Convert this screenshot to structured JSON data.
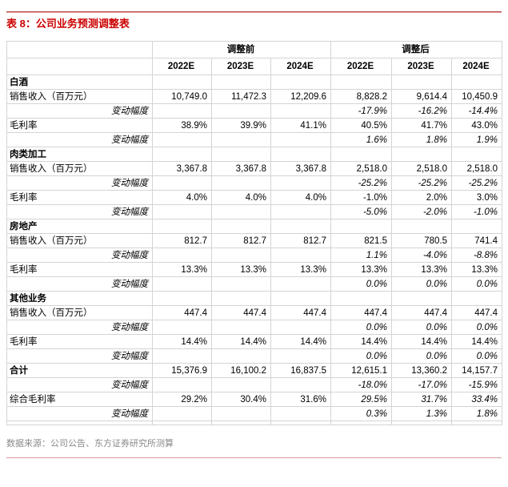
{
  "title": "表 8：公司业务预测调整表",
  "colors": {
    "title_red": "#cc0000",
    "top_rule_red": "#b94441",
    "bottom_rule_pink": "#dc9b9b",
    "footer_gray": "#8a8a8a",
    "grid_gray": "#d4d4d4",
    "section_divider_black": "#000000"
  },
  "table": {
    "group_headers": [
      "调整前",
      "调整后"
    ],
    "year_headers": [
      "2022E",
      "2023E",
      "2024E",
      "2022E",
      "2023E",
      "2024E"
    ],
    "rows": [
      {
        "label": "白酒",
        "style": "section",
        "values": [
          "",
          "",
          "",
          "",
          "",
          ""
        ]
      },
      {
        "label": "销售收入（百万元）",
        "style": "normal",
        "values": [
          "10,749.0",
          "11,472.3",
          "12,209.6",
          "8,828.2",
          "9,614.4",
          "10,450.9"
        ]
      },
      {
        "label": "变动幅度",
        "style": "change",
        "values": [
          "",
          "",
          "",
          "-17.9%",
          "-16.2%",
          "-14.4%"
        ]
      },
      {
        "label": "毛利率",
        "style": "normal",
        "values": [
          "38.9%",
          "39.9%",
          "41.1%",
          "40.5%",
          "41.7%",
          "43.0%"
        ]
      },
      {
        "label": "变动幅度",
        "style": "change",
        "values": [
          "",
          "",
          "",
          "1.6%",
          "1.8%",
          "1.9%"
        ]
      },
      {
        "label": "肉类加工",
        "style": "section",
        "values": [
          "",
          "",
          "",
          "",
          "",
          ""
        ]
      },
      {
        "label": "销售收入（百万元）",
        "style": "normal",
        "values": [
          "3,367.8",
          "3,367.8",
          "3,367.8",
          "2,518.0",
          "2,518.0",
          "2,518.0"
        ]
      },
      {
        "label": "变动幅度",
        "style": "change",
        "values": [
          "",
          "",
          "",
          "-25.2%",
          "-25.2%",
          "-25.2%"
        ]
      },
      {
        "label": "毛利率",
        "style": "normal",
        "values": [
          "4.0%",
          "4.0%",
          "4.0%",
          "-1.0%",
          "2.0%",
          "3.0%"
        ]
      },
      {
        "label": "变动幅度",
        "style": "change",
        "values": [
          "",
          "",
          "",
          "-5.0%",
          "-2.0%",
          "-1.0%"
        ]
      },
      {
        "label": "房地产",
        "style": "section",
        "values": [
          "",
          "",
          "",
          "",
          "",
          ""
        ]
      },
      {
        "label": "销售收入（百万元）",
        "style": "normal",
        "values": [
          "812.7",
          "812.7",
          "812.7",
          "821.5",
          "780.5",
          "741.4"
        ]
      },
      {
        "label": "变动幅度",
        "style": "change",
        "values": [
          "",
          "",
          "",
          "1.1%",
          "-4.0%",
          "-8.8%"
        ]
      },
      {
        "label": "毛利率",
        "style": "normal",
        "values": [
          "13.3%",
          "13.3%",
          "13.3%",
          "13.3%",
          "13.3%",
          "13.3%"
        ]
      },
      {
        "label": "变动幅度",
        "style": "change",
        "values": [
          "",
          "",
          "",
          "0.0%",
          "0.0%",
          "0.0%"
        ]
      },
      {
        "label": "其他业务",
        "style": "section",
        "values": [
          "",
          "",
          "",
          "",
          "",
          ""
        ]
      },
      {
        "label": "销售收入（百万元）",
        "style": "normal",
        "values": [
          "447.4",
          "447.4",
          "447.4",
          "447.4",
          "447.4",
          "447.4"
        ]
      },
      {
        "label": "变动幅度",
        "style": "change",
        "values": [
          "",
          "",
          "",
          "0.0%",
          "0.0%",
          "0.0%"
        ]
      },
      {
        "label": "毛利率",
        "style": "normal",
        "values": [
          "14.4%",
          "14.4%",
          "14.4%",
          "14.4%",
          "14.4%",
          "14.4%"
        ]
      },
      {
        "label": "变动幅度",
        "style": "change",
        "values": [
          "",
          "",
          "",
          "0.0%",
          "0.0%",
          "0.0%"
        ]
      },
      {
        "label": "合计",
        "style": "section",
        "values": [
          "15,376.9",
          "16,100.2",
          "16,837.5",
          "12,615.1",
          "13,360.2",
          "14,157.7"
        ]
      },
      {
        "label": "变动幅度",
        "style": "change",
        "values": [
          "",
          "",
          "",
          "-18.0%",
          "-17.0%",
          "-15.9%"
        ]
      },
      {
        "label": "综合毛利率",
        "style": "normal",
        "italic_from": 3,
        "values": [
          "29.2%",
          "30.4%",
          "31.6%",
          "29.5%",
          "31.7%",
          "33.4%"
        ]
      },
      {
        "label": "变动幅度",
        "style": "change",
        "values": [
          "",
          "",
          "",
          "0.3%",
          "1.3%",
          "1.8%"
        ]
      }
    ]
  },
  "footer": {
    "source": "数据来源：公司公告、东方证券研究所测算"
  }
}
